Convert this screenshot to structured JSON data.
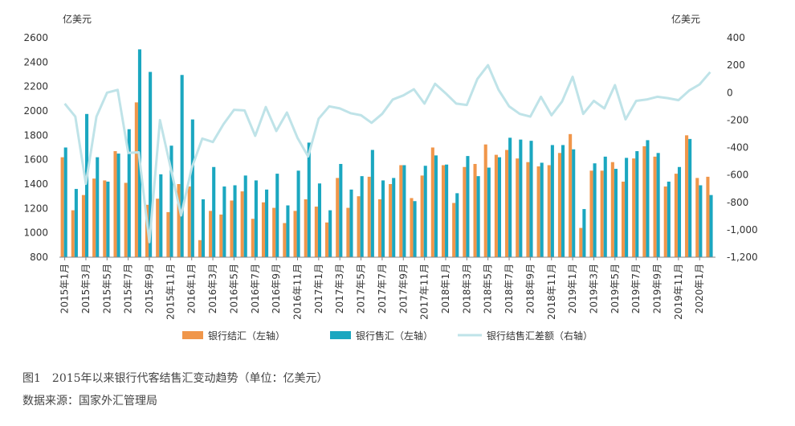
{
  "figure": {
    "caption": "图1　2015年以来银行代客结售汇变动趋势（单位：亿美元）",
    "source": "数据来源：国家外汇管理局"
  },
  "chart_data": {
    "type": "bar",
    "left_unit": "亿美元",
    "right_unit": "亿美元",
    "ylim_left": [
      800,
      2600
    ],
    "yticks_left": [
      "800",
      "1000",
      "1200",
      "1400",
      "1600",
      "1800",
      "2000",
      "2200",
      "2400",
      "2600"
    ],
    "ylim_right": [
      -1200,
      400
    ],
    "yticks_right": [
      "-1,200",
      "-1,000",
      "-800",
      "-600",
      "-400",
      "-200",
      "0",
      "200",
      "400"
    ],
    "categories": [
      "2015年1月",
      "2015年2月",
      "2015年3月",
      "2015年4月",
      "2015年5月",
      "2015年6月",
      "2015年7月",
      "2015年8月",
      "2015年9月",
      "2015年10月",
      "2015年11月",
      "2015年12月",
      "2016年1月",
      "2016年2月",
      "2016年3月",
      "2016年4月",
      "2016年5月",
      "2016年6月",
      "2016年7月",
      "2016年8月",
      "2016年9月",
      "2016年10月",
      "2016年11月",
      "2016年12月",
      "2017年1月",
      "2017年2月",
      "2017年3月",
      "2017年4月",
      "2017年5月",
      "2017年6月",
      "2017年7月",
      "2017年8月",
      "2017年9月",
      "2017年10月",
      "2017年11月",
      "2017年12月",
      "2018年1月",
      "2018年2月",
      "2018年3月",
      "2018年4月",
      "2018年5月",
      "2018年6月",
      "2018年7月",
      "2018年8月",
      "2018年9月",
      "2018年10月",
      "2018年11月",
      "2018年12月",
      "2019年1月",
      "2019年2月",
      "2019年3月",
      "2019年4月",
      "2019年5月",
      "2019年6月",
      "2019年7月",
      "2019年8月",
      "2019年9月",
      "2019年10月",
      "2019年11月",
      "2019年12月",
      "2020年1月",
      "2020年2月"
    ],
    "xtick_labels": [
      "2015年1月",
      "2015年3月",
      "2015年5月",
      "2015年7月",
      "2015年9月",
      "2015年11月",
      "2016年1月",
      "2016年3月",
      "2016年5月",
      "2016年7月",
      "2016年9月",
      "2016年11月",
      "2017年1月",
      "2017年3月",
      "2017年5月",
      "2017年7月",
      "2017年9月",
      "2017年11月",
      "2018年1月",
      "2018年3月",
      "2018年5月",
      "2018年7月",
      "2018年9月",
      "2018年11月",
      "2019年1月",
      "2019年3月",
      "2019年5月",
      "2019年7月",
      "2019年9月",
      "2019年11月",
      "2020年1月"
    ],
    "series": [
      {
        "name": "银行结汇（左轴）",
        "axis": "left",
        "type": "bar",
        "color": "#f0964a",
        "values": [
          1620,
          1185,
          1310,
          1445,
          1430,
          1670,
          1410,
          2070,
          1230,
          1280,
          1170,
          1400,
          1380,
          940,
          1180,
          1150,
          1265,
          1340,
          1115,
          1250,
          1205,
          1080,
          1180,
          1275,
          1215,
          1085,
          1450,
          1205,
          1300,
          1460,
          1275,
          1400,
          1555,
          1285,
          1470,
          1700,
          1555,
          1245,
          1540,
          1565,
          1725,
          1640,
          1680,
          1610,
          1580,
          1545,
          1555,
          1655,
          1810,
          1040,
          1510,
          1510,
          1580,
          1420,
          1610,
          1710,
          1625,
          1380,
          1485,
          1800,
          1450,
          1460
        ]
      },
      {
        "name": "银行售汇（左轴）",
        "axis": "left",
        "type": "bar",
        "color": "#1ba7c0",
        "values": [
          1700,
          1360,
          1975,
          1620,
          1420,
          1650,
          1850,
          2505,
          2320,
          1480,
          1715,
          2295,
          1930,
          1275,
          1540,
          1380,
          1390,
          1470,
          1430,
          1355,
          1485,
          1225,
          1510,
          1740,
          1405,
          1185,
          1565,
          1355,
          1465,
          1680,
          1430,
          1450,
          1555,
          1260,
          1550,
          1635,
          1560,
          1325,
          1630,
          1465,
          1535,
          1620,
          1780,
          1765,
          1755,
          1575,
          1720,
          1720,
          1685,
          1195,
          1570,
          1625,
          1525,
          1615,
          1670,
          1760,
          1655,
          1420,
          1540,
          1770,
          1390,
          1310
        ]
      },
      {
        "name": "银行结售汇差额（右轴）",
        "axis": "right",
        "type": "line",
        "color": "#bfe3e8",
        "values": [
          -80,
          -175,
          -665,
          -175,
          0,
          20,
          -440,
          -435,
          -1090,
          -200,
          -545,
          -895,
          -550,
          -335,
          -360,
          -230,
          -125,
          -130,
          -315,
          -105,
          -280,
          -145,
          -330,
          -465,
          -190,
          -100,
          -115,
          -150,
          -165,
          -220,
          -155,
          -50,
          -20,
          25,
          -80,
          65,
          -5,
          -80,
          -90,
          100,
          200,
          20,
          -100,
          -155,
          -175,
          -30,
          -165,
          -65,
          115,
          -155,
          -60,
          -115,
          55,
          -195,
          -60,
          -50,
          -30,
          -40,
          -55,
          15,
          60,
          150
        ]
      }
    ],
    "legend_position": "bottom"
  }
}
